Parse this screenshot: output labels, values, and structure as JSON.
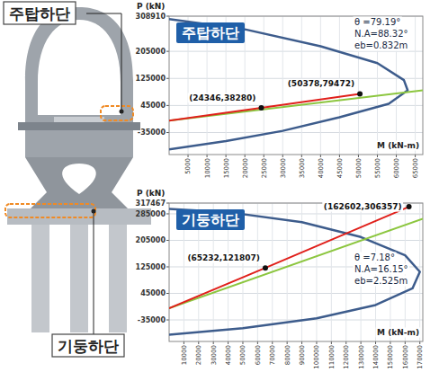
{
  "diagram": {
    "labels": [
      "주탑하단",
      "기둥하단"
    ]
  },
  "chart_data": [
    {
      "type": "line",
      "title": "주탑하단",
      "y_label": "P (kN)",
      "x_label": "M (kN-m)",
      "notes": [
        "θ =79.19°",
        "N.A=88.32°",
        "eb=0.832m"
      ],
      "xlim": [
        0,
        67000
      ],
      "xticks": [
        5000,
        10000,
        15000,
        20000,
        25000,
        30000,
        35000,
        40000,
        45000,
        50000,
        55000,
        60000,
        65000
      ],
      "ylim": [
        -100000,
        308910
      ],
      "yticks": [
        -35000,
        45000,
        125000,
        205000,
        308910
      ],
      "grid": true,
      "series": [
        {
          "color": "#3d5c8c",
          "x": [
            0,
            20000,
            40000,
            55000,
            62000,
            63000,
            58000,
            45000,
            30000,
            15000,
            0
          ],
          "values": [
            300000,
            270000,
            220000,
            170000,
            120000,
            90000,
            50000,
            10000,
            -30000,
            -60000,
            -85000
          ]
        },
        {
          "color": "#8cc63f",
          "x": [
            0,
            67000
          ],
          "values": [
            0,
            90000
          ]
        },
        {
          "color": "#e0201b",
          "x": [
            0,
            24346,
            50378
          ],
          "values": [
            0,
            38280,
            79472
          ]
        }
      ],
      "annotations": [
        {
          "text": "(24346,38280)",
          "x": 24346,
          "y": 38280
        },
        {
          "text": "(50378,79472)",
          "x": 50378,
          "y": 79472
        }
      ]
    },
    {
      "type": "line",
      "title": "기둥하단",
      "y_label": "P (kN)",
      "x_label": "M (kN-m)",
      "notes": [
        "θ =7.18°",
        "N.A=16.15°",
        "eb=2.525m"
      ],
      "xlim": [
        0,
        172000
      ],
      "xticks": [
        10000,
        20000,
        30000,
        40000,
        50000,
        60000,
        70000,
        80000,
        90000,
        100000,
        110000,
        120000,
        130000,
        140000,
        150000,
        160000,
        170000
      ],
      "ylim": [
        -100000,
        317467
      ],
      "yticks": [
        -35000,
        45000,
        125000,
        205000,
        285000,
        317467
      ],
      "grid": true,
      "series": [
        {
          "color": "#3d5c8c",
          "x": [
            0,
            40000,
            90000,
            130000,
            160000,
            170000,
            165000,
            140000,
            100000,
            50000,
            0
          ],
          "values": [
            300000,
            290000,
            260000,
            215000,
            160000,
            110000,
            60000,
            10000,
            -30000,
            -60000,
            -80000
          ]
        },
        {
          "color": "#8cc63f",
          "x": [
            0,
            172000
          ],
          "values": [
            0,
            270000
          ]
        },
        {
          "color": "#e0201b",
          "x": [
            0,
            65232,
            162602
          ],
          "values": [
            0,
            121807,
            306357
          ]
        }
      ],
      "annotations": [
        {
          "text": "(65232,121807)",
          "x": 65232,
          "y": 121807
        },
        {
          "text": "(162602,306357)",
          "x": 162602,
          "y": 306357
        }
      ]
    }
  ]
}
